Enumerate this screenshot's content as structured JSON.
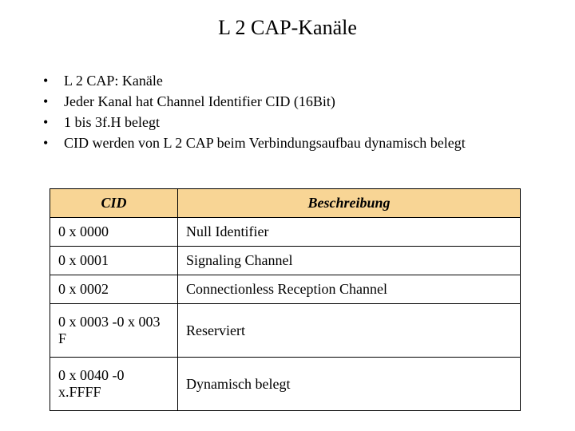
{
  "title": "L 2 CAP-Kanäle",
  "bullets": [
    "L 2 CAP: Kanäle",
    "Jeder Kanal hat Channel Identifier CID (16Bit)",
    "1 bis 3f.H  belegt",
    "CID werden von L 2 CAP beim Verbindungsaufbau dynamisch belegt"
  ],
  "table": {
    "header_bg": "#f8d595",
    "columns": [
      "CID",
      "Beschreibung"
    ],
    "rows": [
      {
        "cid": "0 x 0000",
        "desc": "Null Identifier",
        "tall": false
      },
      {
        "cid": "0 x 0001",
        "desc": "Signaling Channel",
        "tall": false
      },
      {
        "cid": "0 x 0002",
        "desc": "Connectionless Reception Channel",
        "tall": false
      },
      {
        "cid": "0 x 0003 -0 x 003 F",
        "desc": "Reserviert",
        "tall": true
      },
      {
        "cid": "0 x 0040 -0 x.FFFF",
        "desc": "Dynamisch belegt",
        "tall": true
      }
    ]
  }
}
